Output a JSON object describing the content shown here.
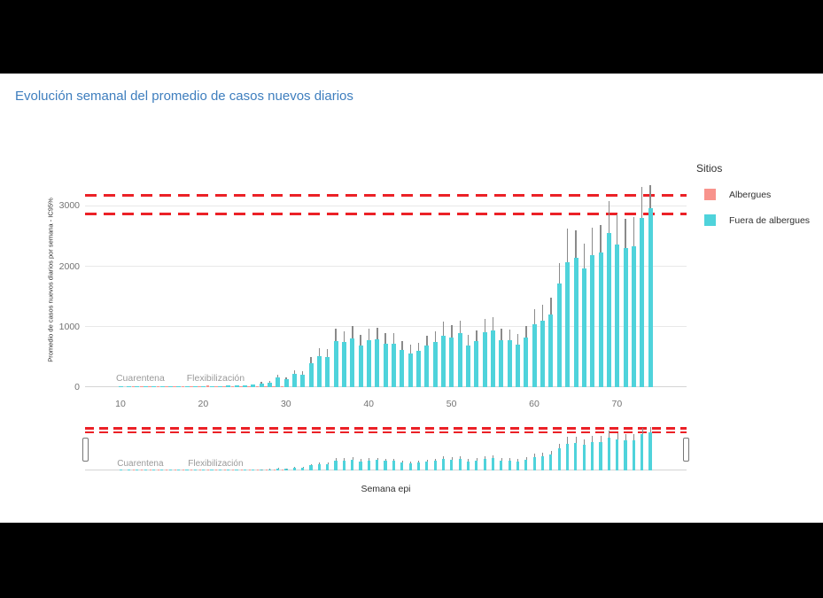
{
  "title": "Evolución semanal del promedio de casos nuevos diarios",
  "legend": {
    "title": "Sitios",
    "items": [
      {
        "label": "Albergues",
        "color": "#F8938C"
      },
      {
        "label": "Fuera de albergues",
        "color": "#4FD3DB"
      }
    ]
  },
  "chart_data": {
    "type": "bar",
    "title": "Evolución semanal del promedio de casos nuevos diarios",
    "xlabel": "Semana epi",
    "ylabel": "Promedio de casos nuevos diarios por semana - IC95%",
    "x_ticks": [
      10,
      20,
      30,
      40,
      50,
      60,
      70
    ],
    "y_ticks": [
      0,
      1000,
      2000,
      3000
    ],
    "xlim": [
      6,
      76
    ],
    "ylim": [
      0,
      3550
    ],
    "grid": "horizontal",
    "legend_position": "right",
    "has_rangeslider": true,
    "reference_lines": [
      {
        "value": 3180,
        "color": "#EB2127",
        "style": "dashed",
        "name": "upper"
      },
      {
        "value": 2870,
        "color": "#EB2127",
        "style": "dashed",
        "name": "lower"
      }
    ],
    "annotations": [
      {
        "text": "Cuarentena",
        "week": 12.4
      },
      {
        "text": "Flexibilización",
        "week": 21.5
      }
    ],
    "series": [
      {
        "name": "Albergues",
        "color": "#F8938C",
        "points": [
          [
            12,
            4
          ],
          [
            13,
            5
          ],
          [
            14,
            4
          ],
          [
            15,
            6
          ],
          [
            16,
            5
          ],
          [
            17,
            8
          ],
          [
            18,
            10
          ],
          [
            19,
            12
          ],
          [
            20,
            14
          ],
          [
            21,
            28
          ],
          [
            22,
            16
          ],
          [
            23,
            13
          ],
          [
            24,
            11
          ],
          [
            25,
            13
          ],
          [
            26,
            11
          ],
          [
            27,
            8
          ],
          [
            28,
            6
          ],
          [
            29,
            5
          ],
          [
            30,
            4
          ]
        ]
      },
      {
        "name": "Fuera de albergues",
        "color": "#4FD3DB",
        "error_bars": "upper CI95",
        "points": [
          [
            10,
            6,
            null
          ],
          [
            11,
            8,
            null
          ],
          [
            12,
            10,
            null
          ],
          [
            13,
            8,
            null
          ],
          [
            14,
            10,
            null
          ],
          [
            15,
            12,
            null
          ],
          [
            16,
            10,
            null
          ],
          [
            17,
            12,
            null
          ],
          [
            18,
            14,
            null
          ],
          [
            19,
            12,
            null
          ],
          [
            20,
            15,
            null
          ],
          [
            21,
            18,
            null
          ],
          [
            22,
            20,
            null
          ],
          [
            23,
            24,
            null
          ],
          [
            24,
            30,
            null
          ],
          [
            25,
            34,
            null
          ],
          [
            26,
            40,
            null
          ],
          [
            27,
            55,
            85
          ],
          [
            28,
            75,
            110
          ],
          [
            29,
            155,
            200
          ],
          [
            30,
            125,
            165
          ],
          [
            31,
            220,
            275
          ],
          [
            32,
            205,
            260
          ],
          [
            33,
            390,
            500
          ],
          [
            34,
            510,
            640
          ],
          [
            35,
            500,
            625
          ],
          [
            36,
            770,
            975
          ],
          [
            37,
            745,
            930
          ],
          [
            38,
            810,
            1010
          ],
          [
            39,
            695,
            860
          ],
          [
            40,
            785,
            975
          ],
          [
            41,
            795,
            985
          ],
          [
            42,
            725,
            895
          ],
          [
            43,
            725,
            890
          ],
          [
            44,
            612,
            760
          ],
          [
            45,
            565,
            700
          ],
          [
            46,
            598,
            740
          ],
          [
            47,
            686,
            850
          ],
          [
            48,
            745,
            925
          ],
          [
            49,
            858,
            1080
          ],
          [
            50,
            823,
            1020
          ],
          [
            51,
            892,
            1105
          ],
          [
            52,
            695,
            860
          ],
          [
            53,
            760,
            940
          ],
          [
            54,
            906,
            1130
          ],
          [
            55,
            940,
            1165
          ],
          [
            56,
            785,
            970
          ],
          [
            57,
            775,
            955
          ],
          [
            58,
            710,
            875
          ],
          [
            59,
            823,
            1015
          ],
          [
            60,
            1046,
            1290
          ],
          [
            61,
            1105,
            1360
          ],
          [
            62,
            1203,
            1480
          ],
          [
            63,
            1719,
            2060
          ],
          [
            64,
            2072,
            2630
          ],
          [
            65,
            2146,
            2600
          ],
          [
            66,
            1964,
            2380
          ],
          [
            67,
            2185,
            2640
          ],
          [
            68,
            2224,
            2690
          ],
          [
            69,
            2554,
            3080
          ],
          [
            70,
            2367,
            2860
          ],
          [
            71,
            2308,
            2790
          ],
          [
            72,
            2333,
            2820
          ],
          [
            73,
            2798,
            3320
          ],
          [
            74,
            2960,
            3340
          ]
        ]
      }
    ]
  }
}
